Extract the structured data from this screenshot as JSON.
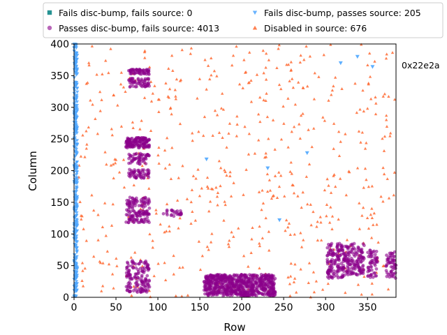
{
  "chart_data": {
    "type": "scatter",
    "title": "",
    "xlabel": "Row",
    "ylabel": "Column",
    "xlim": [
      0,
      384
    ],
    "ylim": [
      0,
      400
    ],
    "xticks": [
      0,
      50,
      100,
      150,
      200,
      250,
      300,
      350
    ],
    "yticks": [
      0,
      50,
      100,
      150,
      200,
      250,
      300,
      350,
      400
    ],
    "grid": false,
    "legend_position": "top",
    "annotation": "0x22e2a",
    "series": [
      {
        "name": "Fails disc-bump, fails source: 0",
        "marker": "square",
        "color": "#008080",
        "points": []
      },
      {
        "name": "Passes disc-bump, fails source: 4013",
        "marker": "circle",
        "color": "#8B008B",
        "points": [],
        "clusters": [
          {
            "x": [
              62,
              90
            ],
            "y": [
              8,
              58
            ],
            "density": "high"
          },
          {
            "x": [
              62,
              90
            ],
            "y": [
              118,
              158
            ],
            "density": "high"
          },
          {
            "x": [
              65,
              90
            ],
            "y": [
              188,
              202
            ],
            "density": "medium"
          },
          {
            "x": [
              65,
              90
            ],
            "y": [
              210,
              228
            ],
            "density": "medium"
          },
          {
            "x": [
              62,
              90
            ],
            "y": [
              236,
              252
            ],
            "density": "high"
          },
          {
            "x": [
              65,
              90
            ],
            "y": [
              332,
              346
            ],
            "density": "medium"
          },
          {
            "x": [
              65,
              90
            ],
            "y": [
              352,
              360
            ],
            "density": "medium"
          },
          {
            "x": [
              105,
              128
            ],
            "y": [
              128,
              138
            ],
            "density": "low"
          },
          {
            "x": [
              155,
              240
            ],
            "y": [
              2,
              36
            ],
            "density": "very high"
          },
          {
            "x": [
              302,
              322
            ],
            "y": [
              30,
              85
            ],
            "density": "high"
          },
          {
            "x": [
              322,
              346
            ],
            "y": [
              35,
              85
            ],
            "density": "high"
          },
          {
            "x": [
              350,
              362
            ],
            "y": [
              30,
              75
            ],
            "density": "medium"
          },
          {
            "x": [
              372,
              384
            ],
            "y": [
              30,
              72
            ],
            "density": "medium"
          }
        ]
      },
      {
        "name": "Fails disc-bump, passes source: 205",
        "marker": "triangle-down",
        "color": "#4DA6FF",
        "points": [
          {
            "x": 158,
            "y": 218
          },
          {
            "x": 231,
            "y": 204
          },
          {
            "x": 245,
            "y": 122
          },
          {
            "x": 278,
            "y": 228
          },
          {
            "x": 318,
            "y": 370
          },
          {
            "x": 338,
            "y": 380
          },
          {
            "x": 356,
            "y": 364
          }
        ],
        "clusters": [
          {
            "x": [
              0,
              4
            ],
            "y": [
              0,
              400
            ],
            "density": "very high"
          }
        ]
      },
      {
        "name": "Disabled in source: 676",
        "marker": "triangle-up",
        "color": "#FF6A33",
        "points": [],
        "clusters": [
          {
            "x": [
              5,
              384
            ],
            "y": [
              0,
              400
            ],
            "density": "sparse"
          }
        ]
      }
    ]
  }
}
